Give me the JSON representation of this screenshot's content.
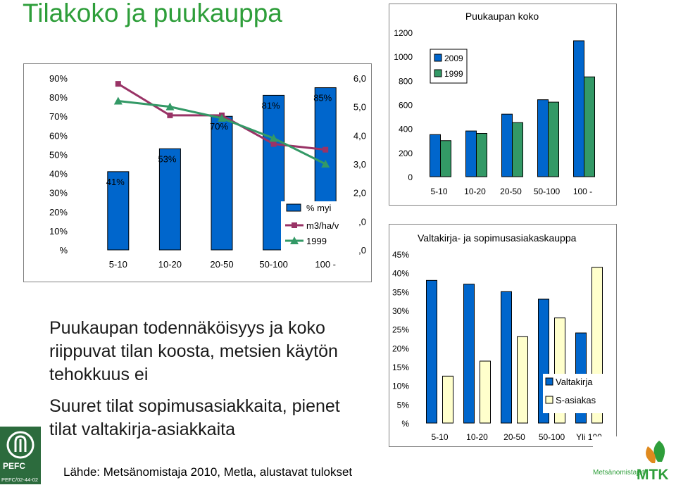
{
  "title": "Tilakoko ja puukauppa",
  "caption_lines": [
    "Puukaupan todennäköisyys ja koko riippuvat tilan koosta, metsien käytön tehokkuus ei",
    "Suuret tilat sopimusasiakkaita, pienet tilat valtakirja-asiakkaita"
  ],
  "source": "Lähde: Metsänomistaja 2010, Metla, alustavat tulokset",
  "logos": {
    "pefc": "PEFC",
    "pefc_code": "PEFC/02-44-02",
    "org": "Metsänomistajat",
    "mtk": "MTK"
  },
  "colors": {
    "blue": "#0066cc",
    "green": "#339966",
    "purple": "#993366",
    "line_green": "#339966",
    "title": "#2e9e3a"
  },
  "chart_data": [
    {
      "type": "bar",
      "categories": [
        "5-10",
        "10-20",
        "20-50",
        "50-100",
        "100 -"
      ],
      "series": [
        {
          "name": "% myi",
          "values": [
            41,
            53,
            70,
            81,
            85
          ]
        }
      ],
      "data_labels": [
        "41%",
        "53%",
        "70%",
        "81%",
        "85%"
      ],
      "y_ticks": [
        "%",
        "10%",
        "20%",
        "30%",
        "40%",
        "50%",
        "60%",
        "70%",
        "80%",
        "90%"
      ],
      "y2_ticks": [
        ",0",
        ",0",
        "2,0",
        "3,0",
        "4,0",
        "5,0",
        "6,0"
      ],
      "lines": [
        {
          "name": "m3/ha/v",
          "values": [
            5.8,
            4.7,
            4.7,
            3.7,
            3.5
          ]
        },
        {
          "name": "1999",
          "values": [
            5.2,
            5.0,
            4.6,
            3.9,
            3.0
          ]
        }
      ],
      "ylim": [
        0,
        90
      ],
      "y2lim": [
        0,
        6
      ],
      "legend": "bottom-right"
    },
    {
      "type": "bar",
      "title": "Puukaupan koko",
      "categories": [
        "5-10",
        "10-20",
        "20-50",
        "50-100",
        "100 -"
      ],
      "series": [
        {
          "name": "2009",
          "values": [
            350,
            380,
            520,
            640,
            1130
          ]
        },
        {
          "name": "1999",
          "values": [
            300,
            360,
            450,
            620,
            830
          ]
        }
      ],
      "y_ticks": [
        "0",
        "200",
        "400",
        "600",
        "800",
        "1000",
        "1200"
      ],
      "ylim": [
        0,
        1200
      ],
      "legend": "top-left"
    },
    {
      "type": "bar",
      "title": "Valtakirja- ja sopimusasiakaskauppa",
      "categories": [
        "5-10",
        "10-20",
        "20-50",
        "50-100",
        "Yli 100"
      ],
      "series": [
        {
          "name": "Valtakirja",
          "values": [
            38,
            37,
            35,
            33,
            24
          ]
        },
        {
          "name": "S-asiakas",
          "values": [
            12.5,
            16.5,
            23,
            28,
            41.5
          ]
        }
      ],
      "y_ticks": [
        "%",
        "5%",
        "10%",
        "15%",
        "20%",
        "25%",
        "30%",
        "35%",
        "40%",
        "45%"
      ],
      "ylim": [
        0,
        45
      ],
      "legend": "bottom-right"
    }
  ]
}
